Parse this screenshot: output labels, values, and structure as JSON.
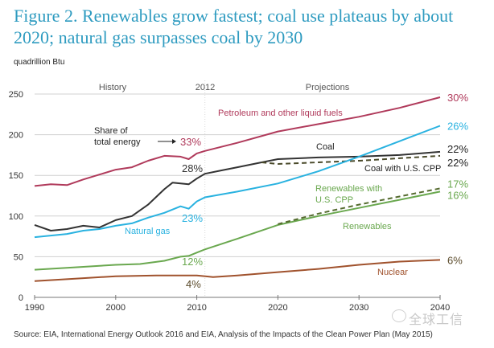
{
  "title": "Figure 2. Renewables grow fastest; coal use plateaus by about 2020; natural gas surpasses coal by 2030",
  "units_label": "quadrillion Btu",
  "source": "Source:  EIA, International Energy Outlook 2016 and EIA, Analysis of the Impacts of the Clean Power Plan (May 2015)",
  "watermark": "全球工信",
  "chart_data": {
    "type": "line",
    "title": "Figure 2. Renewables grow fastest; coal use plateaus by about 2020; natural gas surpasses coal by 2030",
    "xlabel": "",
    "ylabel": "quadrillion Btu",
    "xlim": [
      1990,
      2040
    ],
    "ylim": [
      0,
      250
    ],
    "x_ticks": [
      1990,
      2000,
      2010,
      2020,
      2030,
      2040
    ],
    "y_ticks": [
      0,
      50,
      100,
      150,
      200,
      250
    ],
    "grid": "horizontal",
    "divider": {
      "x": 2011,
      "label": "2012"
    },
    "region_labels": {
      "history": "History",
      "projections": "Projections"
    },
    "annotation": {
      "text_line1": "Share of",
      "text_line2": "total energy"
    },
    "series": [
      {
        "name": "Petroleum and other liquid fuels",
        "color": "#b03a5b",
        "style": "solid",
        "x": [
          1990,
          1992,
          1994,
          1996,
          1998,
          2000,
          2002,
          2004,
          2006,
          2008,
          2009,
          2010,
          2011,
          2015,
          2020,
          2025,
          2030,
          2035,
          2040
        ],
        "values": [
          137,
          139,
          138,
          145,
          151,
          157,
          160,
          168,
          174,
          173,
          170,
          177,
          180,
          190,
          204,
          213,
          222,
          233,
          246
        ],
        "label_2011": "33%",
        "label_2040": "30%"
      },
      {
        "name": "Coal",
        "color": "#333333",
        "style": "solid",
        "x": [
          1990,
          1992,
          1994,
          1996,
          1998,
          2000,
          2002,
          2004,
          2006,
          2007,
          2009,
          2010,
          2011,
          2013,
          2015,
          2018,
          2020,
          2025,
          2030,
          2035,
          2040
        ],
        "values": [
          89,
          82,
          84,
          88,
          86,
          95,
          100,
          114,
          133,
          141,
          139,
          146,
          152,
          156,
          160,
          166,
          170,
          172,
          173,
          175,
          179
        ],
        "label_2011": "28%",
        "label_2040": "22%"
      },
      {
        "name": "Coal with U.S. CPP",
        "color": "#4a4a2a",
        "style": "dashed",
        "x": [
          2018,
          2020,
          2025,
          2030,
          2035,
          2040
        ],
        "values": [
          166,
          164,
          166,
          168,
          171,
          174
        ],
        "label_2040": "22%"
      },
      {
        "name": "Natural gas",
        "color": "#29b2e0",
        "style": "solid",
        "x": [
          1990,
          1992,
          1994,
          1996,
          1998,
          2000,
          2002,
          2004,
          2006,
          2008,
          2009,
          2010,
          2011,
          2015,
          2020,
          2025,
          2030,
          2035,
          2040
        ],
        "values": [
          74,
          76,
          78,
          82,
          84,
          88,
          91,
          98,
          104,
          112,
          109,
          118,
          123,
          130,
          140,
          155,
          173,
          192,
          211
        ],
        "label_2011": "23%",
        "label_2040": "26%"
      },
      {
        "name": "Renewables",
        "color": "#6aa84f",
        "style": "solid",
        "x": [
          1990,
          1995,
          2000,
          2003,
          2006,
          2008,
          2009,
          2010,
          2011,
          2015,
          2020,
          2025,
          2030,
          2035,
          2040
        ],
        "values": [
          34,
          37,
          40,
          41,
          45,
          50,
          51,
          55,
          59,
          72,
          89,
          100,
          110,
          120,
          130
        ],
        "label_2011": "12%",
        "label_2040": "16%"
      },
      {
        "name": "Renewables with U.S. CPP",
        "color": "#556b2f",
        "style": "dashed",
        "x": [
          2020,
          2025,
          2030,
          2035,
          2040
        ],
        "values": [
          90,
          103,
          114,
          124,
          134
        ],
        "label_2040": "17%"
      },
      {
        "name": "Nuclear",
        "color": "#a0522d",
        "style": "solid",
        "x": [
          1990,
          1995,
          2000,
          2005,
          2008,
          2010,
          2012,
          2015,
          2020,
          2025,
          2030,
          2035,
          2040
        ],
        "values": [
          20,
          23,
          26,
          27,
          27,
          27,
          25,
          27,
          31,
          35,
          40,
          44,
          46
        ],
        "label_2011": "4%",
        "label_2040": "6%"
      }
    ],
    "series_labels": {
      "petroleum": "Petroleum and other liquid fuels",
      "coal": "Coal",
      "coal_cpp": "Coal with U.S. CPP",
      "gas": "Natural gas",
      "renew_cpp_1": "Renewables with",
      "renew_cpp_2": "U.S. CPP",
      "renewables": "Renewables",
      "nuclear": "Nuclear"
    }
  }
}
